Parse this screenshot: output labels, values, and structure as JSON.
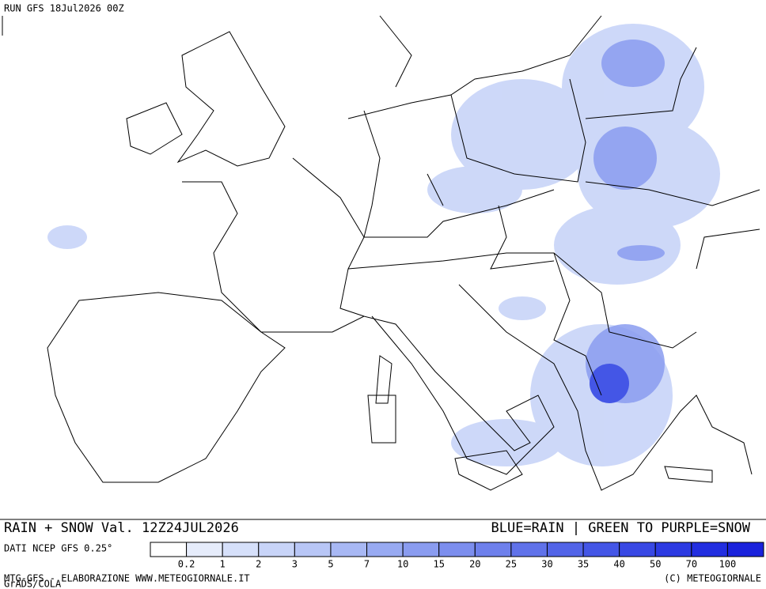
{
  "header": {
    "run": "RUN GFS 18Jul2026 00Z"
  },
  "map": {
    "title": "RAIN + SNOW Val. 12Z24JUL2026",
    "key": "BLUE=RAIN | GREEN TO PURPLE=SNOW"
  },
  "legend": {
    "source": "DATI NCEP GFS 0.25°",
    "ticks": [
      0.2,
      1,
      2,
      3,
      5,
      7,
      10,
      15,
      20,
      25,
      30,
      35,
      40,
      50,
      70,
      100
    ],
    "colors": [
      "#ffffff",
      "#e6ecfb",
      "#d6e0fa",
      "#c8d4f8",
      "#b8c6f6",
      "#a8b8f4",
      "#98aaf2",
      "#8a9cf0",
      "#7c8eee",
      "#6e80ec",
      "#6072ea",
      "#5264e8",
      "#4456e6",
      "#3848e4",
      "#2c3ae2",
      "#222ee0",
      "#1a22dc"
    ]
  },
  "footer": {
    "credit": "MTG-GFS - ELABORAZIONE WWW.METEOGIORNALE.IT",
    "grads": "GrADS/COLA",
    "copyright": "(C) METEOGIORNALE"
  }
}
